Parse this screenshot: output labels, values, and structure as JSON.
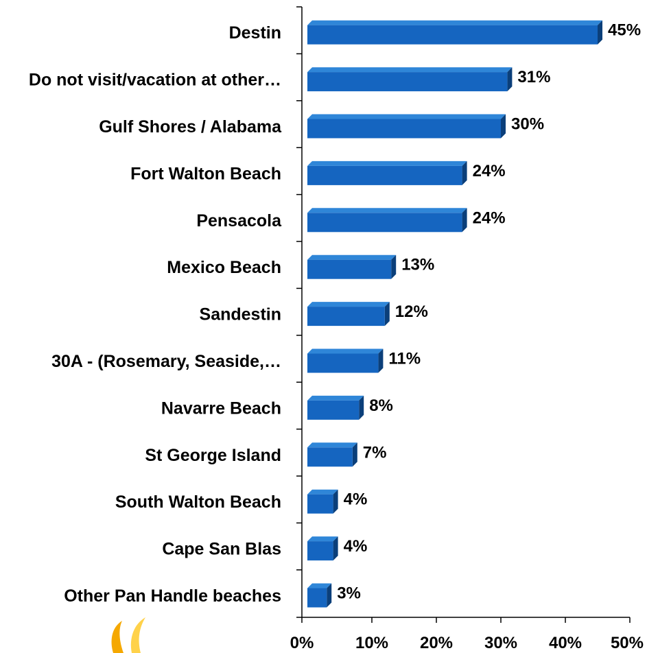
{
  "chart_data": {
    "type": "bar",
    "orientation": "horizontal",
    "categories": [
      "Destin",
      "Do not visit/vacation at other…",
      "Gulf Shores / Alabama",
      "Fort Walton Beach",
      "Pensacola",
      "Mexico Beach",
      "Sandestin",
      "30A - (Rosemary, Seaside,…",
      "Navarre Beach",
      "St George Island",
      "South Walton Beach",
      "Cape San Blas",
      "Other Pan Handle beaches"
    ],
    "values": [
      45,
      31,
      30,
      24,
      24,
      13,
      12,
      11,
      8,
      7,
      4,
      4,
      3
    ],
    "value_labels": [
      "45%",
      "31%",
      "30%",
      "24%",
      "24%",
      "13%",
      "12%",
      "11%",
      "8%",
      "7%",
      "4%",
      "4%",
      "3%"
    ],
    "xlim": [
      0,
      50
    ],
    "x_ticks": [
      0,
      10,
      20,
      30,
      40,
      50
    ],
    "x_tick_labels": [
      "0%",
      "10%",
      "20%",
      "30%",
      "40%",
      "50%"
    ],
    "grid": false,
    "colors": {
      "bar_front": "#1565c0",
      "bar_top": "#2f86d8",
      "bar_side": "#0b3f7a"
    }
  },
  "decor": {
    "logo_colors": [
      "#f5a800",
      "#ffd24a"
    ]
  }
}
